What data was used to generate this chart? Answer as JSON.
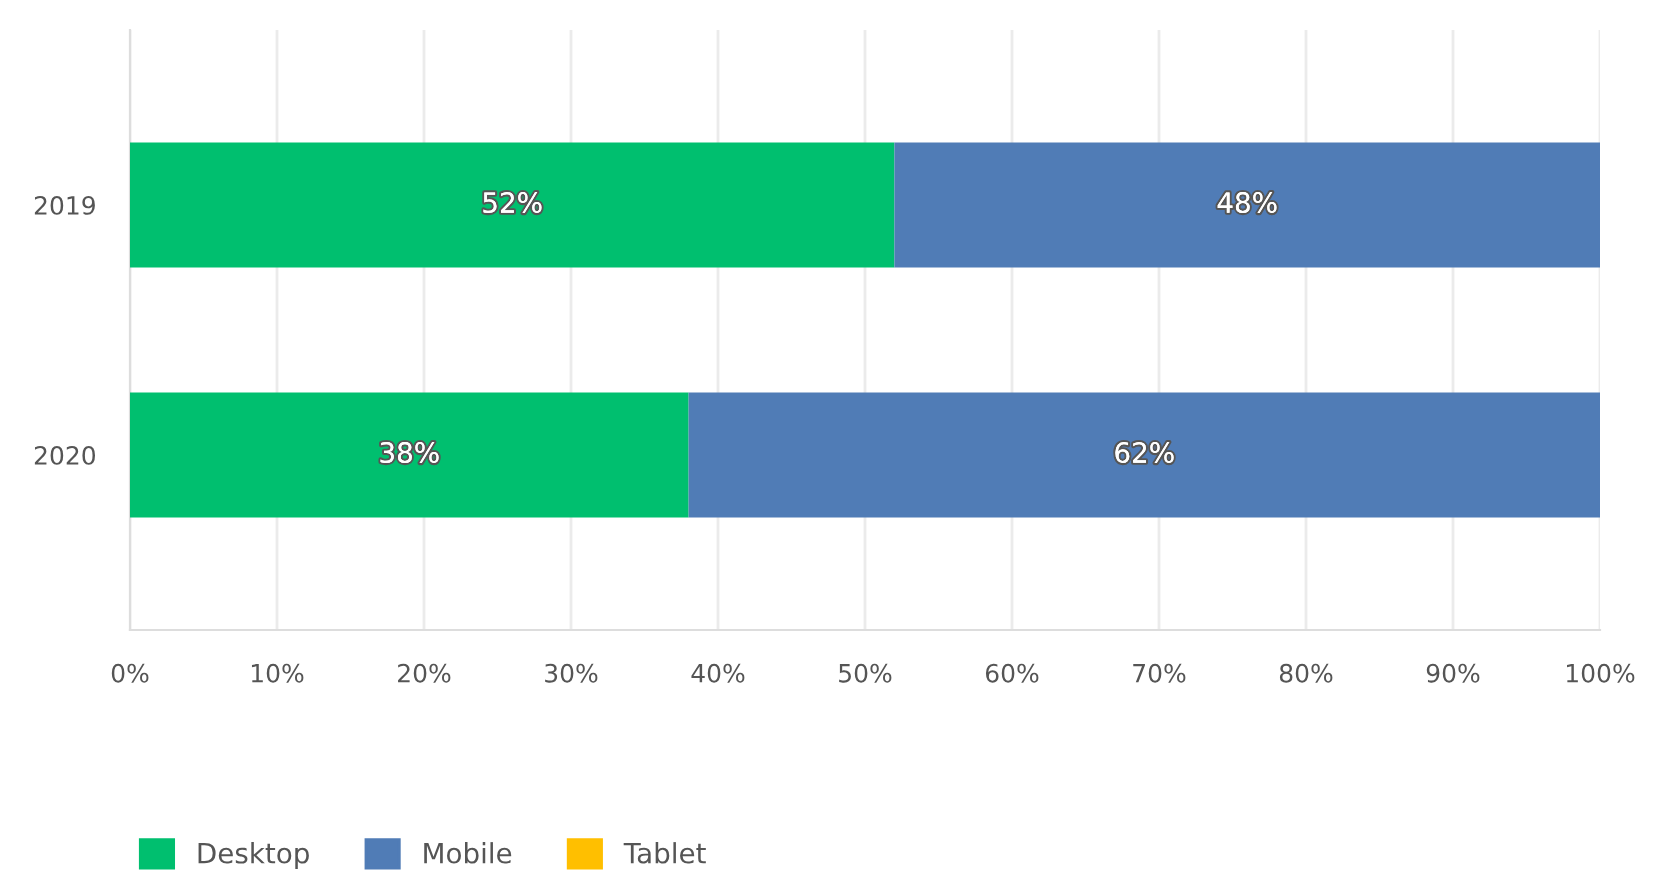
{
  "chart_data": {
    "type": "bar",
    "orientation": "horizontal",
    "stacked": true,
    "categories": [
      "2019",
      "2020"
    ],
    "series": [
      {
        "name": "Desktop",
        "color": "#00bf6f",
        "values": [
          52,
          38
        ],
        "value_labels": [
          "52%",
          "38%"
        ]
      },
      {
        "name": "Mobile",
        "color": "#507cb6",
        "values": [
          48,
          62
        ],
        "value_labels": [
          "48%",
          "62%"
        ]
      },
      {
        "name": "Tablet",
        "color": "#ffbf00",
        "values": [
          0,
          0
        ],
        "value_labels": [
          null,
          null
        ]
      }
    ],
    "xlim": [
      0,
      100
    ],
    "xticks": [
      {
        "value": 0,
        "label": "0%"
      },
      {
        "value": 10,
        "label": "10%"
      },
      {
        "value": 20,
        "label": "20%"
      },
      {
        "value": 30,
        "label": "30%"
      },
      {
        "value": 40,
        "label": "40%"
      },
      {
        "value": 50,
        "label": "50%"
      },
      {
        "value": 60,
        "label": "60%"
      },
      {
        "value": 70,
        "label": "70%"
      },
      {
        "value": 80,
        "label": "80%"
      },
      {
        "value": 90,
        "label": "90%"
      },
      {
        "value": 100,
        "label": "100%"
      }
    ],
    "grid": "x",
    "legend": "bottom left"
  }
}
